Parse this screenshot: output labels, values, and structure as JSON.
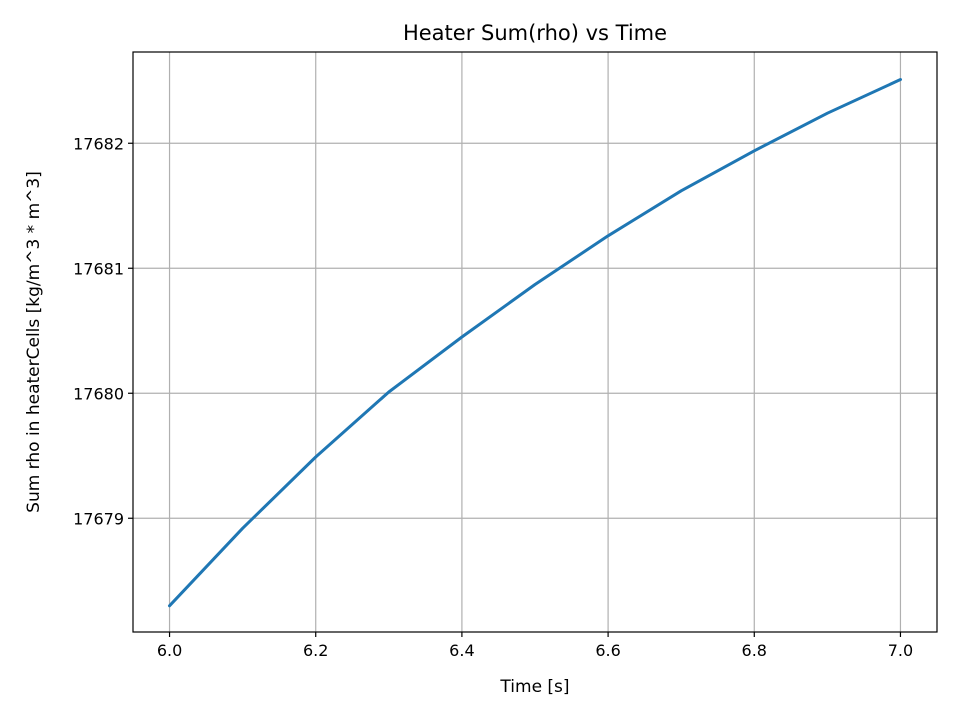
{
  "chart_data": {
    "type": "line",
    "title": "Heater Sum(rho) vs Time",
    "xlabel": "Time [s]",
    "ylabel": "Sum rho in heaterCells [kg/m^3 * m^3]",
    "xlim": [
      5.95,
      7.05
    ],
    "ylim": [
      17678.09,
      17682.73
    ],
    "xticks": [
      6.0,
      6.2,
      6.4,
      6.6,
      6.8,
      7.0
    ],
    "xtick_labels": [
      "6.0",
      "6.2",
      "6.4",
      "6.6",
      "6.8",
      "7.0"
    ],
    "yticks": [
      17679,
      17680,
      17681,
      17682
    ],
    "ytick_labels": [
      "17679",
      "17680",
      "17681",
      "17682"
    ],
    "grid": true,
    "series": [
      {
        "color": "#1f77b4",
        "x": [
          6.0,
          6.1,
          6.2,
          6.3,
          6.4,
          6.5,
          6.6,
          6.7,
          6.8,
          6.9,
          7.0
        ],
        "y": [
          17678.3,
          17678.92,
          17679.49,
          17680.01,
          17680.45,
          17680.87,
          17681.26,
          17681.62,
          17681.94,
          17682.24,
          17682.51
        ]
      }
    ]
  }
}
